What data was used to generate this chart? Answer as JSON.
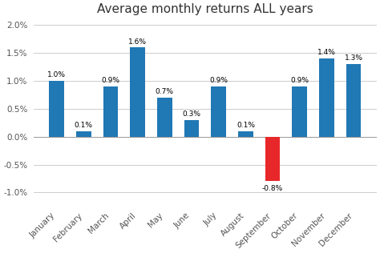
{
  "title": "Average monthly returns ALL years",
  "categories": [
    "January",
    "February",
    "March",
    "April",
    "May",
    "June",
    "July",
    "August",
    "September",
    "October",
    "November",
    "December"
  ],
  "values": [
    1.0,
    0.1,
    0.9,
    1.6,
    0.7,
    0.3,
    0.9,
    0.1,
    -0.8,
    0.9,
    1.4,
    1.3
  ],
  "bar_colors": [
    "#2078b4",
    "#2078b4",
    "#2078b4",
    "#2078b4",
    "#2078b4",
    "#2078b4",
    "#2078b4",
    "#2078b4",
    "#e8272a",
    "#2078b4",
    "#2078b4",
    "#2078b4"
  ],
  "ylim": [
    -1.25,
    2.1
  ],
  "yticks": [
    -1.0,
    -0.5,
    0.0,
    0.5,
    1.0,
    1.5,
    2.0
  ],
  "title_fontsize": 11,
  "label_fontsize": 6.5,
  "tick_label_fontsize": 7.5,
  "background_color": "#ffffff",
  "grid_color": "#cccccc",
  "text_color": "#555555"
}
